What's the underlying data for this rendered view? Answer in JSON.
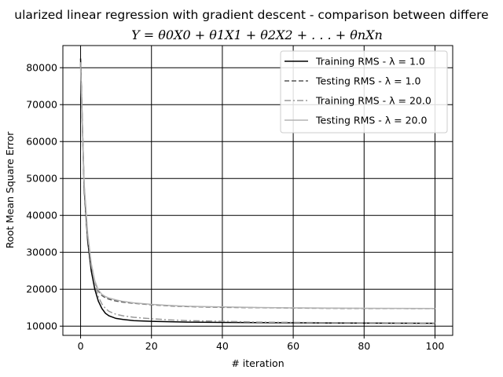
{
  "chart_data": {
    "type": "line",
    "title": "ularized linear regression with gradient descent - comparison between differe",
    "subtitle": "Y = θ0X0 + θ1X1 + θ2X2 + . . . + θnXn",
    "xlabel": "# iteration",
    "ylabel": "Root Mean Square Error",
    "xlim": [
      -5,
      105
    ],
    "ylim": [
      7500,
      86000
    ],
    "xticks": [
      0,
      20,
      40,
      60,
      80,
      100
    ],
    "yticks": [
      10000,
      20000,
      30000,
      40000,
      50000,
      60000,
      70000,
      80000
    ],
    "grid": true,
    "legend_position": "top-right",
    "x": [
      0,
      1,
      2,
      3,
      4,
      5,
      6,
      7,
      8,
      10,
      12,
      15,
      20,
      25,
      30,
      40,
      50,
      60,
      70,
      80,
      90,
      100
    ],
    "series": [
      {
        "name": "Training RMS - λ = 1.0",
        "color": "#000000",
        "dash": "solid",
        "values": [
          82500,
          47000,
          33000,
          25000,
          20000,
          16800,
          14800,
          13500,
          12800,
          12100,
          11800,
          11500,
          11300,
          11200,
          11100,
          11000,
          10950,
          10900,
          10850,
          10820,
          10800,
          10780
        ]
      },
      {
        "name": "Testing RMS - λ = 1.0",
        "color": "#555555",
        "dash": "dashed",
        "values": [
          81000,
          47500,
          34000,
          26500,
          22000,
          19500,
          18300,
          17700,
          17300,
          16800,
          16500,
          16200,
          15800,
          15500,
          15300,
          15100,
          15000,
          14900,
          14850,
          14800,
          14780,
          14760
        ]
      },
      {
        "name": "Training RMS - λ = 20.0",
        "color": "#999999",
        "dash": "dashdot",
        "values": [
          81500,
          48000,
          34500,
          26500,
          21500,
          18000,
          16000,
          14800,
          14000,
          13200,
          12800,
          12400,
          12000,
          11700,
          11500,
          11300,
          11100,
          11000,
          10950,
          10900,
          10880,
          10850
        ]
      },
      {
        "name": "Testing RMS - λ = 20.0",
        "color": "#b3b3b3",
        "dash": "solid",
        "values": [
          80000,
          48500,
          35000,
          27000,
          22300,
          19800,
          18600,
          18000,
          17600,
          17100,
          16700,
          16300,
          15900,
          15600,
          15400,
          15200,
          15050,
          14950,
          14900,
          14850,
          14820,
          14800
        ]
      }
    ]
  }
}
